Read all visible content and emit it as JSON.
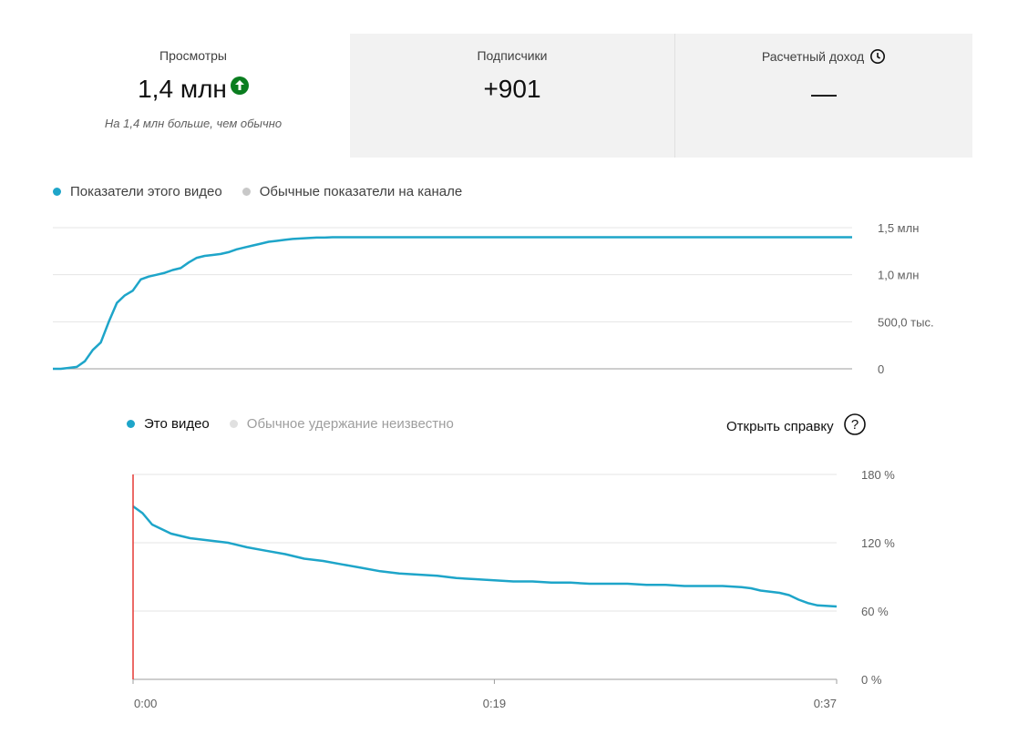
{
  "cards": [
    {
      "label": "Просмотры",
      "value": "1,4 млн",
      "sub": "На 1,4 млн больше, чем обычно",
      "trend_icon": "arrow-up-circle-icon",
      "trend_color": "#0a7d1f"
    },
    {
      "label": "Подписчики",
      "value": "+901"
    },
    {
      "label": "Расчетный доход",
      "value": "—",
      "icon": "clock-icon"
    }
  ],
  "views_legend": {
    "this_video": "Показатели этого видео",
    "typical": "Обычные показатели на канале"
  },
  "retention_legend": {
    "this_video": "Это видео",
    "typical": "Обычное удержание неизвестно"
  },
  "help_link": "Открыть справку",
  "colors": {
    "accent": "#1ea5c9",
    "legend_gray": "#c8c8c8",
    "marker": "#e53935"
  },
  "chart_data": [
    {
      "type": "line",
      "title": "",
      "y_tick_labels": [
        "1,5 млн",
        "1,0 млн",
        "500,0 тыс.",
        "0"
      ],
      "ylim": [
        0,
        1500000
      ],
      "grid": true,
      "series": [
        {
          "name": "Показатели этого видео",
          "x": [
            0,
            1,
            2,
            3,
            4,
            5,
            6,
            7,
            8,
            9,
            10,
            11,
            12,
            13,
            14,
            15,
            16,
            17,
            18,
            19,
            20,
            21,
            22,
            23,
            24,
            25,
            26,
            27,
            28,
            29,
            30,
            31,
            32,
            33,
            34,
            35,
            36,
            37,
            38,
            39,
            40,
            100
          ],
          "values": [
            0,
            0,
            10000,
            20000,
            80000,
            200000,
            280000,
            500000,
            700000,
            780000,
            830000,
            950000,
            980000,
            1000000,
            1020000,
            1050000,
            1070000,
            1130000,
            1180000,
            1200000,
            1210000,
            1220000,
            1240000,
            1270000,
            1290000,
            1310000,
            1330000,
            1350000,
            1360000,
            1370000,
            1380000,
            1385000,
            1390000,
            1395000,
            1395000,
            1398000,
            1398000,
            1398000,
            1398000,
            1398000,
            1398000,
            1398000
          ]
        }
      ]
    },
    {
      "type": "line",
      "title": "",
      "y_tick_labels": [
        "180 %",
        "120 %",
        "60 %",
        "0 %"
      ],
      "x_tick_labels": [
        "0:00",
        "0:19",
        "0:37"
      ],
      "ylim": [
        0,
        180
      ],
      "xlim": [
        0,
        37
      ],
      "grid": true,
      "series": [
        {
          "name": "Это видео",
          "x": [
            0,
            0.5,
            1,
            1.5,
            2,
            3,
            4,
            5,
            6,
            7,
            8,
            9,
            10,
            11,
            12,
            13,
            14,
            15,
            16,
            17,
            18,
            19,
            20,
            21,
            22,
            23,
            24,
            25,
            26,
            27,
            28,
            29,
            30,
            31,
            32,
            32.5,
            33,
            34,
            34.5,
            35,
            35.5,
            36,
            37
          ],
          "values": [
            152,
            146,
            136,
            132,
            128,
            124,
            122,
            120,
            116,
            113,
            110,
            106,
            104,
            101,
            98,
            95,
            93,
            92,
            91,
            89,
            88,
            87,
            86,
            86,
            85,
            85,
            84,
            84,
            84,
            83,
            83,
            82,
            82,
            82,
            81,
            80,
            78,
            76,
            74,
            70,
            67,
            65,
            64
          ]
        }
      ],
      "marker_x": 0
    }
  ]
}
